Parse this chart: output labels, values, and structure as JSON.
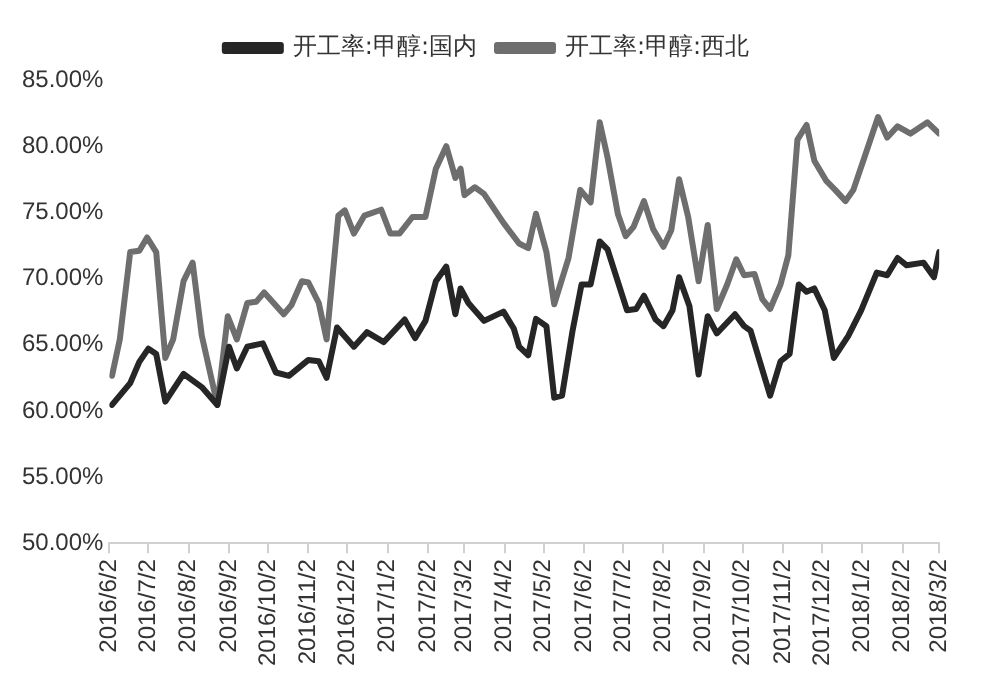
{
  "chart_data": {
    "type": "line",
    "legend": "top",
    "grid": false,
    "marker": "none",
    "line_style": "solid",
    "xlim": [
      "2016-06-02",
      "2018-03-02"
    ],
    "xticks": [
      {
        "value": "2016-06-02",
        "label": "2016/6/2"
      },
      {
        "value": "2016-07-02",
        "label": "2016/7/2"
      },
      {
        "value": "2016-08-02",
        "label": "2016/8/2"
      },
      {
        "value": "2016-09-02",
        "label": "2016/9/2"
      },
      {
        "value": "2016-10-02",
        "label": "2016/10/2"
      },
      {
        "value": "2016-11-02",
        "label": "2016/11/2"
      },
      {
        "value": "2016-12-02",
        "label": "2016/12/2"
      },
      {
        "value": "2017-01-02",
        "label": "2017/1/2"
      },
      {
        "value": "2017-02-02",
        "label": "2017/2/2"
      },
      {
        "value": "2017-03-02",
        "label": "2017/3/2"
      },
      {
        "value": "2017-04-02",
        "label": "2017/4/2"
      },
      {
        "value": "2017-05-02",
        "label": "2017/5/2"
      },
      {
        "value": "2017-06-02",
        "label": "2017/6/2"
      },
      {
        "value": "2017-07-02",
        "label": "2017/7/2"
      },
      {
        "value": "2017-08-02",
        "label": "2017/8/2"
      },
      {
        "value": "2017-09-02",
        "label": "2017/9/2"
      },
      {
        "value": "2017-10-02",
        "label": "2017/10/2"
      },
      {
        "value": "2017-11-02",
        "label": "2017/11/2"
      },
      {
        "value": "2017-12-02",
        "label": "2017/12/2"
      },
      {
        "value": "2018-01-02",
        "label": "2018/1/2"
      },
      {
        "value": "2018-02-02",
        "label": "2018/2/2"
      },
      {
        "value": "2018-03-02",
        "label": "2018/3/2"
      }
    ],
    "ylim": [
      50,
      85
    ],
    "yticks": [
      {
        "value": 50,
        "label": "50.00%"
      },
      {
        "value": 55,
        "label": "55.00%"
      },
      {
        "value": 60,
        "label": "60.00%"
      },
      {
        "value": 65,
        "label": "65.00%"
      },
      {
        "value": 70,
        "label": "70.00%"
      },
      {
        "value": 75,
        "label": "75.00%"
      },
      {
        "value": 80,
        "label": "80.00%"
      },
      {
        "value": 85,
        "label": "85.00%"
      }
    ],
    "series": [
      {
        "name": "开工率:甲醇:国内",
        "color": "#262626",
        "x": [
          "2016-06-04",
          "2016-06-18",
          "2016-06-25",
          "2016-07-02",
          "2016-07-08",
          "2016-07-15",
          "2016-07-29",
          "2016-08-12",
          "2016-08-24",
          "2016-09-02",
          "2016-09-08",
          "2016-09-16",
          "2016-09-28",
          "2016-10-08",
          "2016-10-18",
          "2016-11-02",
          "2016-11-10",
          "2016-11-16",
          "2016-11-24",
          "2016-12-07",
          "2016-12-17",
          "2016-12-30",
          "2017-01-15",
          "2017-01-23",
          "2017-01-31",
          "2017-02-08",
          "2017-02-16",
          "2017-02-23",
          "2017-02-27",
          "2017-03-05",
          "2017-03-17",
          "2017-04-01",
          "2017-04-09",
          "2017-04-13",
          "2017-04-20",
          "2017-04-26",
          "2017-05-04",
          "2017-05-10",
          "2017-05-16",
          "2017-05-24",
          "2017-05-31",
          "2017-06-07",
          "2017-06-14",
          "2017-06-20",
          "2017-07-05",
          "2017-07-12",
          "2017-07-18",
          "2017-07-27",
          "2017-08-02",
          "2017-08-09",
          "2017-08-14",
          "2017-08-22",
          "2017-08-29",
          "2017-09-05",
          "2017-09-12",
          "2017-09-26",
          "2017-10-03",
          "2017-10-08",
          "2017-10-23",
          "2017-10-31",
          "2017-11-07",
          "2017-11-14",
          "2017-11-20",
          "2017-11-26",
          "2017-12-04",
          "2017-12-11",
          "2017-12-22",
          "2018-01-01",
          "2018-01-13",
          "2018-01-21",
          "2018-01-29",
          "2018-02-05",
          "2018-02-18",
          "2018-02-26",
          "2018-03-02"
        ],
        "values": [
          60.45,
          62.1,
          63.7,
          64.7,
          64.3,
          60.7,
          62.8,
          61.8,
          60.45,
          64.85,
          63.2,
          64.85,
          65.1,
          62.9,
          62.65,
          63.85,
          63.75,
          62.5,
          66.3,
          64.85,
          65.95,
          65.2,
          66.9,
          65.5,
          66.8,
          69.8,
          70.9,
          67.3,
          69.25,
          68.15,
          66.8,
          67.5,
          66.2,
          64.85,
          64.2,
          66.95,
          66.4,
          61.0,
          61.15,
          66.0,
          69.55,
          69.55,
          72.8,
          72.2,
          67.6,
          67.7,
          68.7,
          66.9,
          66.4,
          67.6,
          70.1,
          67.9,
          62.75,
          67.15,
          65.85,
          67.3,
          66.4,
          66.05,
          61.15,
          63.75,
          64.3,
          69.55,
          69.0,
          69.25,
          67.6,
          64.0,
          65.65,
          67.6,
          70.45,
          70.25,
          71.55,
          71.0,
          71.2,
          70.1,
          72.0
        ]
      },
      {
        "name": "开工率:甲醇:西北",
        "color": "#6e6e6e",
        "x": [
          "2016-06-04",
          "2016-06-10",
          "2016-06-18",
          "2016-06-25",
          "2016-07-01",
          "2016-07-08",
          "2016-07-15",
          "2016-07-21",
          "2016-07-29",
          "2016-08-05",
          "2016-08-12",
          "2016-08-24",
          "2016-09-01",
          "2016-09-08",
          "2016-09-16",
          "2016-09-23",
          "2016-09-29",
          "2016-10-14",
          "2016-10-20",
          "2016-10-28",
          "2016-11-02",
          "2016-11-10",
          "2016-11-16",
          "2016-11-25",
          "2016-11-30",
          "2016-12-07",
          "2016-12-15",
          "2016-12-28",
          "2017-01-04",
          "2017-01-11",
          "2017-01-21",
          "2017-01-31",
          "2017-02-08",
          "2017-02-16",
          "2017-02-23",
          "2017-02-27",
          "2017-03-02",
          "2017-03-10",
          "2017-03-17",
          "2017-04-01",
          "2017-04-13",
          "2017-04-20",
          "2017-04-26",
          "2017-05-04",
          "2017-05-10",
          "2017-05-21",
          "2017-05-30",
          "2017-06-07",
          "2017-06-14",
          "2017-06-20",
          "2017-06-28",
          "2017-07-04",
          "2017-07-10",
          "2017-07-18",
          "2017-07-25",
          "2017-08-02",
          "2017-08-08",
          "2017-08-14",
          "2017-08-21",
          "2017-08-29",
          "2017-09-05",
          "2017-09-12",
          "2017-09-20",
          "2017-09-27",
          "2017-10-03",
          "2017-10-11",
          "2017-10-17",
          "2017-10-23",
          "2017-10-31",
          "2017-11-06",
          "2017-11-13",
          "2017-11-20",
          "2017-11-26",
          "2017-12-05",
          "2017-12-12",
          "2017-12-20",
          "2017-12-26",
          "2018-01-04",
          "2018-01-14",
          "2018-01-21",
          "2018-01-29",
          "2018-02-08",
          "2018-02-21",
          "2018-03-02"
        ],
        "values": [
          62.65,
          65.4,
          72.0,
          72.1,
          73.1,
          72.0,
          64.0,
          65.4,
          69.8,
          71.2,
          65.7,
          60.45,
          67.15,
          65.4,
          68.15,
          68.25,
          68.95,
          67.3,
          68.0,
          69.8,
          69.7,
          68.15,
          65.4,
          74.75,
          75.15,
          73.4,
          74.75,
          75.2,
          73.4,
          73.4,
          74.65,
          74.65,
          78.3,
          80.0,
          77.6,
          78.3,
          76.3,
          76.9,
          76.4,
          74.2,
          72.65,
          72.3,
          74.9,
          72.0,
          68.05,
          71.55,
          76.7,
          75.75,
          81.8,
          79.15,
          74.85,
          73.2,
          73.9,
          75.85,
          73.75,
          72.4,
          73.65,
          77.5,
          74.65,
          69.8,
          74.05,
          67.7,
          69.55,
          71.45,
          70.25,
          70.35,
          68.45,
          67.7,
          69.55,
          71.75,
          80.5,
          81.6,
          78.9,
          77.4,
          76.7,
          75.85,
          76.7,
          79.3,
          82.2,
          80.65,
          81.5,
          80.95,
          81.8,
          80.95
        ]
      }
    ]
  }
}
